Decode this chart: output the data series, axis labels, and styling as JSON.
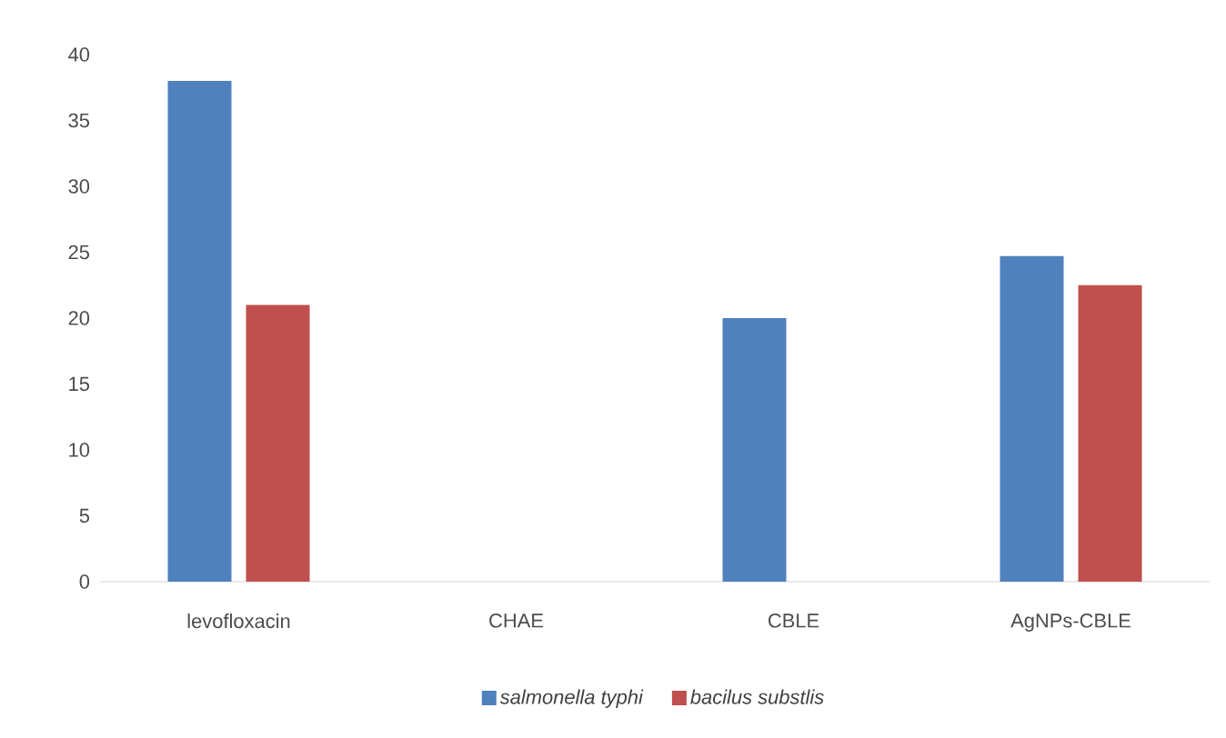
{
  "chart_data": {
    "type": "bar",
    "categories": [
      "levofloxacin",
      "CHAE",
      "CBLE",
      "AgNPs-CBLE"
    ],
    "series": [
      {
        "name": "salmonella typhi",
        "color": "#4f81bd",
        "values": [
          38,
          null,
          20,
          24.7
        ]
      },
      {
        "name": "bacilus substlis",
        "color": "#c0504d",
        "values": [
          21,
          null,
          null,
          22.5
        ]
      }
    ],
    "ylim": [
      0,
      40
    ],
    "yticks": [
      0,
      5,
      10,
      15,
      20,
      25,
      30,
      35,
      40
    ],
    "grid": false,
    "legend": "bottom"
  }
}
